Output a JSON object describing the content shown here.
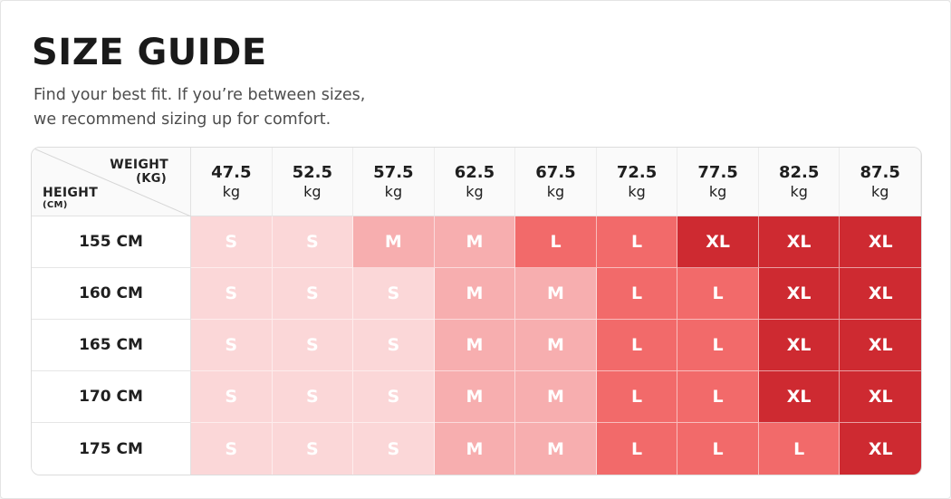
{
  "title": "SIZE GUIDE",
  "subtitle_lines": [
    "Find your best fit. If you’re between sizes,",
    "we recommend sizing up for comfort."
  ],
  "corner": {
    "weight_label": "WEIGHT",
    "weight_unit": "(KG)",
    "height_label": "HEIGHT",
    "height_unit": "(CM)"
  },
  "weight_unit": "kg",
  "size_colors": {
    "S": "#fbd7d8",
    "M": "#f7aeaf",
    "L": "#f26a6a",
    "XL": "#ce2a31"
  },
  "chart_data": {
    "type": "table",
    "columns": [
      "47.5",
      "52.5",
      "57.5",
      "62.5",
      "67.5",
      "72.5",
      "77.5",
      "82.5",
      "87.5"
    ],
    "rows": [
      {
        "height": "155 CM",
        "sizes": [
          "S",
          "S",
          "M",
          "M",
          "L",
          "L",
          "XL",
          "XL",
          "XL"
        ]
      },
      {
        "height": "160 CM",
        "sizes": [
          "S",
          "S",
          "S",
          "M",
          "M",
          "L",
          "L",
          "XL",
          "XL"
        ]
      },
      {
        "height": "165 CM",
        "sizes": [
          "S",
          "S",
          "S",
          "M",
          "M",
          "L",
          "L",
          "XL",
          "XL"
        ]
      },
      {
        "height": "170 CM",
        "sizes": [
          "S",
          "S",
          "S",
          "M",
          "M",
          "L",
          "L",
          "XL",
          "XL"
        ]
      },
      {
        "height": "175 CM",
        "sizes": [
          "S",
          "S",
          "S",
          "M",
          "M",
          "L",
          "L",
          "L",
          "XL"
        ]
      }
    ]
  }
}
